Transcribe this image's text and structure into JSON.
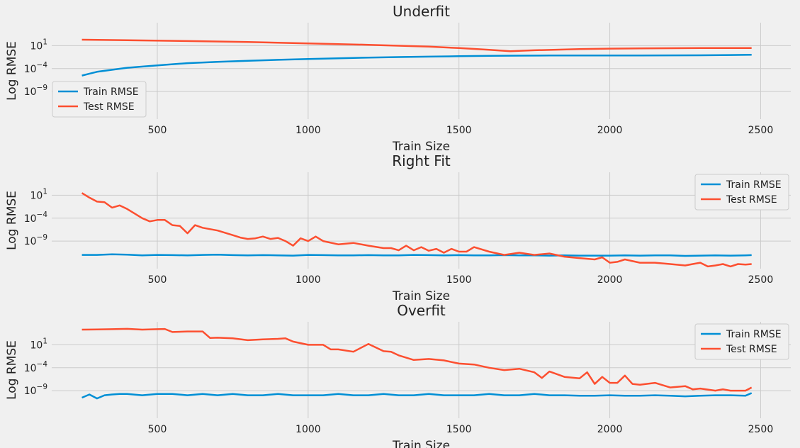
{
  "chart_data": [
    {
      "type": "line",
      "title": "Underfit",
      "xlabel": "Train Size",
      "ylabel": "Log RMSE",
      "yscale": "log",
      "xlim": [
        150,
        2600
      ],
      "ylim": [
        1e-15,
        1000000.0
      ],
      "xticks": [
        500,
        1000,
        1500,
        2000,
        2500
      ],
      "xtick_labels": [
        "500",
        "1000",
        "1500",
        "2000",
        "2500"
      ],
      "yticks": [
        10.0,
        0.0001,
        1e-09
      ],
      "ytick_labels": [
        "10^1",
        "10^-4",
        "10^-9"
      ],
      "grid": true,
      "legend_position": "lower-left",
      "series": [
        {
          "name": "Train RMSE",
          "color": "#008fd5",
          "x": [
            250,
            300,
            400,
            500,
            600,
            700,
            800,
            900,
            1000,
            1100,
            1200,
            1300,
            1400,
            1500,
            1600,
            1700,
            1800,
            1900,
            2000,
            2100,
            2200,
            2300,
            2400,
            2470
          ],
          "y": [
            3e-06,
            2e-05,
            0.00015,
            0.0005,
            0.0015,
            0.003,
            0.005,
            0.008,
            0.012,
            0.018,
            0.025,
            0.032,
            0.04,
            0.05,
            0.06,
            0.065,
            0.07,
            0.07,
            0.072,
            0.072,
            0.075,
            0.08,
            0.09,
            0.1
          ]
        },
        {
          "name": "Test RMSE",
          "color": "#fc4f30",
          "x": [
            250,
            400,
            600,
            800,
            1000,
            1200,
            1400,
            1500,
            1600,
            1670,
            1750,
            1900,
            2000,
            2100,
            2200,
            2300,
            2400,
            2470
          ],
          "y": [
            200,
            150,
            100,
            60,
            30,
            15,
            6,
            3,
            1.2,
            0.6,
            1,
            1.8,
            2.2,
            2.5,
            2.8,
            3,
            3,
            3
          ]
        }
      ]
    },
    {
      "type": "line",
      "title": "Right Fit",
      "xlabel": "Train Size",
      "ylabel": "Log RMSE",
      "yscale": "log",
      "xlim": [
        150,
        2600
      ],
      "ylim": [
        1e-15,
        1000000.0
      ],
      "xticks": [
        500,
        1000,
        1500,
        2000,
        2500
      ],
      "xtick_labels": [
        "500",
        "1000",
        "1500",
        "2000",
        "2500"
      ],
      "yticks": [
        10.0,
        0.0001,
        1e-09
      ],
      "ytick_labels": [
        "10^1",
        "10^-4",
        "10^-9"
      ],
      "grid": true,
      "legend_position": "upper-right",
      "series": [
        {
          "name": "Train RMSE",
          "color": "#008fd5",
          "x": [
            250,
            300,
            350,
            400,
            450,
            500,
            550,
            600,
            650,
            700,
            750,
            800,
            850,
            900,
            950,
            1000,
            1050,
            1100,
            1150,
            1200,
            1250,
            1300,
            1350,
            1400,
            1450,
            1500,
            1550,
            1600,
            1650,
            1700,
            1750,
            1800,
            1850,
            1900,
            1950,
            2000,
            2050,
            2100,
            2150,
            2200,
            2250,
            2300,
            2350,
            2400,
            2450,
            2470
          ],
          "y": [
            1e-12,
            1e-12,
            1.3e-12,
            1.1e-12,
            8e-13,
            1e-12,
            9e-13,
            8e-13,
            1e-12,
            1.1e-12,
            9e-13,
            8e-13,
            9e-13,
            8e-13,
            7e-13,
            1e-12,
            9e-13,
            8e-13,
            8e-13,
            9e-13,
            8e-13,
            8e-13,
            1e-12,
            9e-13,
            8e-13,
            9e-13,
            8e-13,
            8e-13,
            9e-13,
            8e-13,
            8e-13,
            7e-13,
            8e-13,
            7e-13,
            7e-13,
            7e-13,
            8e-13,
            7e-13,
            8e-13,
            8e-13,
            6e-13,
            7e-13,
            8e-13,
            7e-13,
            8e-13,
            9e-13
          ]
        },
        {
          "name": "Test RMSE",
          "color": "#fc4f30",
          "x": [
            250,
            275,
            300,
            325,
            350,
            375,
            400,
            425,
            450,
            475,
            500,
            525,
            550,
            575,
            600,
            625,
            650,
            700,
            750,
            775,
            800,
            825,
            850,
            875,
            900,
            925,
            950,
            975,
            1000,
            1025,
            1050,
            1100,
            1150,
            1200,
            1250,
            1275,
            1300,
            1325,
            1350,
            1375,
            1400,
            1425,
            1450,
            1475,
            1500,
            1525,
            1550,
            1600,
            1650,
            1700,
            1750,
            1800,
            1850,
            1900,
            1950,
            1975,
            2000,
            2025,
            2050,
            2100,
            2150,
            2200,
            2250,
            2275,
            2300,
            2325,
            2350,
            2375,
            2400,
            2425,
            2450,
            2470
          ],
          "y": [
            30,
            3,
            0.4,
            0.3,
            0.02,
            0.06,
            0.01,
            0.001,
            0.0001,
            2e-05,
            4e-05,
            4e-05,
            3e-06,
            2e-06,
            5e-08,
            3e-06,
            8e-07,
            2e-07,
            2e-08,
            6e-09,
            3e-09,
            4e-09,
            1e-08,
            3e-09,
            5e-09,
            1e-09,
            1e-10,
            4e-09,
            1e-09,
            1e-08,
            1e-09,
            2e-10,
            4e-10,
            1e-10,
            3e-11,
            3e-11,
            1e-11,
            1e-10,
            1e-11,
            5e-11,
            8e-12,
            2e-11,
            3e-12,
            2e-11,
            5e-12,
            5e-12,
            5e-11,
            5e-12,
            1e-12,
            3e-12,
            1e-12,
            2e-12,
            4e-13,
            2e-13,
            1e-13,
            3e-13,
            2e-14,
            3e-14,
            1e-13,
            2e-14,
            2e-14,
            1e-14,
            5e-15,
            1e-14,
            2e-14,
            3e-15,
            5e-15,
            1e-14,
            3e-15,
            1e-14,
            8e-15,
            1e-14
          ]
        }
      ]
    },
    {
      "type": "line",
      "title": "Overfit",
      "xlabel": "Train Size",
      "ylabel": "Log RMSE",
      "yscale": "log",
      "xlim": [
        150,
        2600
      ],
      "ylim": [
        1e-15,
        1000000.0
      ],
      "xticks": [
        500,
        1000,
        1500,
        2000,
        2500
      ],
      "xtick_labels": [
        "500",
        "1000",
        "1500",
        "2000",
        "2500"
      ],
      "yticks": [
        10.0,
        0.0001,
        1e-09
      ],
      "ytick_labels": [
        "10^1",
        "10^-4",
        "10^-9"
      ],
      "grid": true,
      "legend_position": "upper-right",
      "series": [
        {
          "name": "Train RMSE",
          "color": "#008fd5",
          "x": [
            250,
            275,
            300,
            325,
            350,
            375,
            400,
            450,
            500,
            550,
            600,
            650,
            700,
            750,
            800,
            850,
            900,
            950,
            1000,
            1050,
            1100,
            1150,
            1200,
            1250,
            1300,
            1350,
            1400,
            1450,
            1500,
            1550,
            1600,
            1650,
            1700,
            1750,
            1800,
            1850,
            1900,
            1950,
            2000,
            2050,
            2100,
            2150,
            2200,
            2250,
            2300,
            2350,
            2400,
            2450,
            2470
          ],
          "y": [
            3e-11,
            1.5e-10,
            2e-11,
            1e-10,
            1.5e-10,
            2e-10,
            2e-10,
            1e-10,
            2e-10,
            2e-10,
            1e-10,
            2e-10,
            1e-10,
            2e-10,
            1e-10,
            1e-10,
            2e-10,
            1e-10,
            1e-10,
            1e-10,
            2e-10,
            1e-10,
            1e-10,
            2e-10,
            1e-10,
            1e-10,
            2e-10,
            1e-10,
            1e-10,
            1e-10,
            2e-10,
            1e-10,
            1e-10,
            2e-10,
            1e-10,
            1e-10,
            8e-11,
            8e-11,
            1e-10,
            8e-11,
            8e-11,
            1e-10,
            8e-11,
            6e-11,
            8e-11,
            1e-10,
            1e-10,
            8e-11,
            3e-10
          ]
        },
        {
          "name": "Test RMSE",
          "color": "#fc4f30",
          "x": [
            250,
            300,
            350,
            400,
            450,
            500,
            525,
            550,
            600,
            650,
            675,
            700,
            750,
            800,
            850,
            900,
            925,
            950,
            1000,
            1050,
            1075,
            1100,
            1150,
            1200,
            1250,
            1275,
            1300,
            1350,
            1400,
            1450,
            1500,
            1550,
            1600,
            1650,
            1700,
            1750,
            1775,
            1800,
            1850,
            1900,
            1925,
            1950,
            1975,
            2000,
            2025,
            2050,
            2075,
            2100,
            2150,
            2200,
            2250,
            2275,
            2300,
            2350,
            2375,
            2400,
            2450,
            2470
          ],
          "y": [
            20000.0,
            22000.0,
            25000.0,
            30000.0,
            20000.0,
            25000.0,
            28000.0,
            6000,
            8000,
            8000,
            300,
            350,
            250,
            100,
            150,
            200,
            250,
            50,
            10,
            10,
            1,
            1,
            0.3,
            15,
            0.4,
            0.3,
            0.05,
            0.005,
            0.008,
            0.004,
            0.0008,
            0.0005,
            0.0001,
            3e-05,
            6e-05,
            1e-05,
            6e-07,
            1.5e-05,
            1e-06,
            5e-07,
            1e-05,
            3e-08,
            1e-06,
            5e-08,
            5e-08,
            2e-06,
            3e-08,
            2e-08,
            5e-08,
            5e-09,
            1e-08,
            2e-09,
            3e-09,
            1e-09,
            2e-09,
            1e-09,
            1e-09,
            5e-09
          ]
        }
      ]
    }
  ]
}
